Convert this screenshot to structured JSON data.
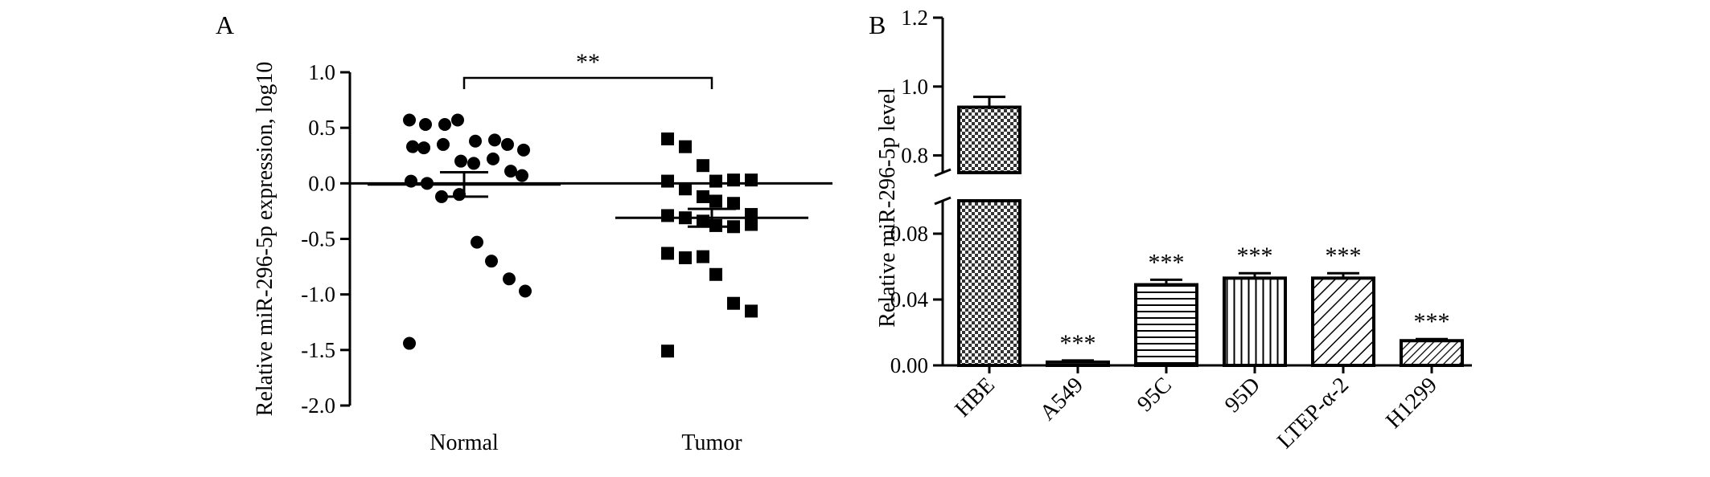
{
  "chart_data": [
    {
      "panel": "A",
      "type": "scatter",
      "ylabel": "Relative miR-296-5p expression, log10",
      "ylim": [
        -2.0,
        1.0
      ],
      "yticks": [
        1.0,
        0.5,
        0.0,
        -0.5,
        -1.0,
        -1.5,
        -2.0
      ],
      "ytick_labels": [
        "1.0",
        "0.5",
        "0.0",
        "-0.5",
        "-1.0",
        "-1.5",
        "-2.0"
      ],
      "categories": [
        "Normal",
        "Tumor"
      ],
      "reference_line_y": 0.0,
      "significance": {
        "label": "**",
        "between": [
          "Normal",
          "Tumor"
        ]
      },
      "series": [
        {
          "name": "Normal",
          "marker": "circle",
          "values": [
            0.57,
            0.53,
            0.53,
            0.57,
            0.38,
            0.39,
            0.35,
            0.3,
            0.33,
            0.32,
            0.35,
            0.2,
            0.18,
            0.22,
            0.11,
            0.07,
            0.02,
            0.0,
            -0.12,
            -0.1,
            -0.53,
            -0.7,
            -0.86,
            -0.97,
            -1.44
          ],
          "mean": -0.01,
          "sem": 0.11
        },
        {
          "name": "Tumor",
          "marker": "square",
          "values": [
            0.4,
            0.33,
            0.16,
            0.02,
            0.03,
            0.03,
            0.02,
            -0.05,
            -0.12,
            -0.16,
            -0.18,
            -0.28,
            -0.29,
            -0.31,
            -0.34,
            -0.38,
            -0.39,
            -0.37,
            -0.63,
            -0.67,
            -0.66,
            -0.82,
            -1.08,
            -1.15,
            -1.51
          ],
          "mean": -0.31,
          "sem": 0.08
        }
      ]
    },
    {
      "panel": "B",
      "type": "bar",
      "ylabel": "Relative miR-296-5p level",
      "categories": [
        "HBE",
        "A549",
        "95C",
        "95D",
        "LTEP-α-2",
        "H1299"
      ],
      "values": [
        0.94,
        0.002,
        0.049,
        0.053,
        0.053,
        0.015
      ],
      "errors": [
        0.03,
        0.001,
        0.003,
        0.003,
        0.003,
        0.001
      ],
      "patterns": [
        "checker",
        "solid",
        "horizontal",
        "vertical",
        "diagonal",
        "diagonal-dense"
      ],
      "significance_labels": [
        "",
        "***",
        "***",
        "***",
        "***",
        "***"
      ],
      "broken_axis": true,
      "ylim_lower": [
        0.0,
        0.1
      ],
      "ylim_upper": [
        0.75,
        1.2
      ],
      "yticks_lower": [
        0.0,
        0.04,
        0.08
      ],
      "ytick_labels_lower": [
        "0.00",
        "0.04",
        "0.08"
      ],
      "yticks_upper": [
        0.8,
        1.0,
        1.2
      ],
      "ytick_labels_upper": [
        "0.8",
        "1.0",
        "1.2"
      ]
    }
  ],
  "panel_labels": {
    "a": "A",
    "b": "B"
  }
}
